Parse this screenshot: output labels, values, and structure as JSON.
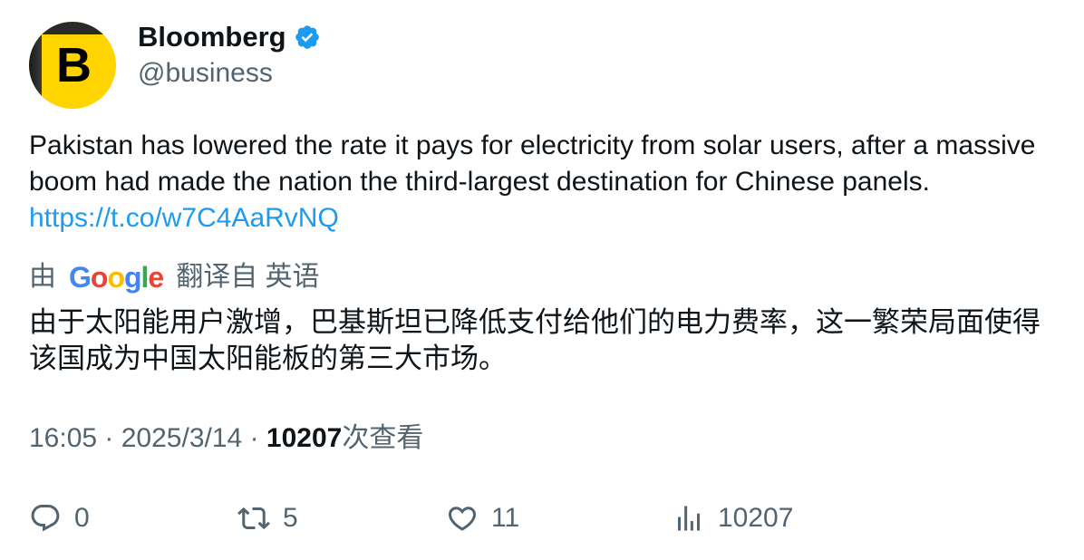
{
  "author": {
    "name": "Bloomberg",
    "handle": "@business",
    "avatar_letter": "B",
    "verified": true
  },
  "tweet": {
    "text": "Pakistan has lowered the rate it pays for electricity from solar users, after a massive boom had made the nation the third-largest destination for Chinese panels. ",
    "link": "https://t.co/w7C4AaRvNQ"
  },
  "translation": {
    "prefix": "由",
    "brand": "Google",
    "suffix": "翻译自 英语",
    "text": "由于太阳能用户激增，巴基斯坦已降低支付给他们的电力费率，这一繁荣局面使得该国成为中国太阳能板的第三大市场。"
  },
  "meta": {
    "time": "16:05",
    "date": "2025/3/14",
    "views": "10207",
    "views_label": "次查看"
  },
  "actions": {
    "replies": "0",
    "retweets": "5",
    "likes": "11",
    "views": "10207"
  },
  "colors": {
    "link": "#1d9bf0",
    "muted": "#536471",
    "brand_yellow": "#ffd400"
  }
}
